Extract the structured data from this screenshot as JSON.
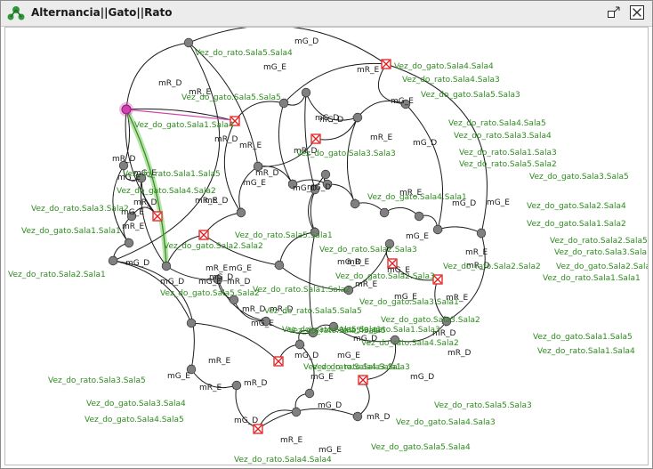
{
  "window": {
    "title": "Alternancia||Gato||Rato"
  },
  "labels": [
    "Vez_do_rato.Sala5.Sala4",
    "Vez_do_gato.Sala4.Sala4",
    "Vez_do_rato.Sala4.Sala3",
    "Vez_do_gato.Sala5.Sala5",
    "Vez_do_gato.Sala5.Sala3",
    "Vez_do_gato.Sala1.Sala4",
    "Vez_do_rato.Sala4.Sala5",
    "Vez_do_rato.Sala3.Sala4",
    "Vez_do_rato.Sala1.Sala3",
    "Vez_do_rato.Sala5.Sala2",
    "Vez_do_gato.Sala3.Sala3",
    "Vez_do_rato.Sala1.Sala5",
    "Vez_do_gato.Sala3.Sala5",
    "Vez_do_gato.Sala4.Sala2",
    "Vez_do_gato.Sala4.Sala1",
    "Vez_do_gato.Sala2.Sala4",
    "Vez_do_rato.Sala3.Sala2",
    "Vez_do_gato.Sala1.Sala2",
    "Vez_do_gato.Sala1.Sala1",
    "Vez_do_rato.Sala5.Sala1",
    "Vez_do_rato.Sala2.Sala5",
    "Vez_do_rato.Sala3.Sala1",
    "Vez_do_rato.Sala2.Sala3",
    "Vez_do_gato.Sala2.Sala2",
    "Vez_do_rato.Sala2.Sala2",
    "Vez_do_gato.Sala2.Sala1",
    "Vez_do_rato.Sala2.Sala1",
    "Vez_do_gato.Sala2.Sala3",
    "Vez_do_rato.Sala1.Sala1",
    "Vez_do_gato.Sala5.Sala2",
    "Vez_do_rato.Sala1.Sala2",
    "Vez_do_rato.Sala5.Sala5",
    "Vez_do_gato.Sala3.Sala1",
    "Vez_do_gato.Sala3.Sala2",
    "Vez_do_gato.Sala1.Sala3",
    "Vez_do_gato.Sala5.Sala1",
    "Vez_do_rato.Sala4.Sala2",
    "Vez_do_rato.Sala4.Sala1",
    "Vez_do_gato.Sala1.Sala5",
    "Vez_do_rato.Sala1.Sala4",
    "Vez_do_rato.Sala5.Sala5",
    "Vez_do_rato.Sala3.Sala3",
    "Vez_do_rato.Sala3.Sala5",
    "Vez_do_gato.Sala3.Sala4",
    "Vez_do_rato.Sala5.Sala3",
    "Vez_do_gato.Sala4.Sala5",
    "Vez_do_gato.Sala4.Sala3",
    "Vez_do_gato.Sala5.Sala4",
    "Vez_do_rato.Sala4.Sala4"
  ],
  "edge_labels": [
    "mG_D",
    "mR_E",
    "mG_E",
    "mR_D",
    "mR_E",
    "mG_D",
    "mG_E",
    "mR_D",
    "mR_E",
    "mG_D",
    "mR_D",
    "mR_E",
    "mR_D",
    "mG_E",
    "mG_D",
    "mG_E",
    "mR_E",
    "mR_D",
    "mG_E",
    "mR_D",
    "mG_D",
    "mR_E",
    "mG_D",
    "mR_D",
    "mG_E",
    "mR_E",
    "mG_D",
    "mG_E",
    "mG_D",
    "mR_E",
    "mR_D",
    "mG_D",
    "mG_E",
    "mG_D",
    "mR_E",
    "mG_D",
    "mG_E",
    "mR_D",
    "mR_E",
    "mG_E",
    "mR_D",
    "mR_D",
    "mG_E",
    "mG_D",
    "mG_E",
    "mG_D",
    "mR_E",
    "mG_E",
    "mR_D",
    "mG_D",
    "mR_E",
    "mG_E",
    "mR_E",
    "mR_D",
    "mG_E",
    "mG_D",
    "mG_D",
    "mR_D",
    "mR_E",
    "mG_E",
    "mR_D",
    "mR_E",
    "mG_E"
  ],
  "colors": {
    "label_green": "#2e8b1f",
    "node_gray": "#808080",
    "marked_red": "#e02020",
    "highlight_magenta": "#d040b0",
    "highlight_green": "#60c040"
  },
  "icons": {
    "app": "network-icon",
    "restore": "restore-icon",
    "close": "close-icon"
  }
}
